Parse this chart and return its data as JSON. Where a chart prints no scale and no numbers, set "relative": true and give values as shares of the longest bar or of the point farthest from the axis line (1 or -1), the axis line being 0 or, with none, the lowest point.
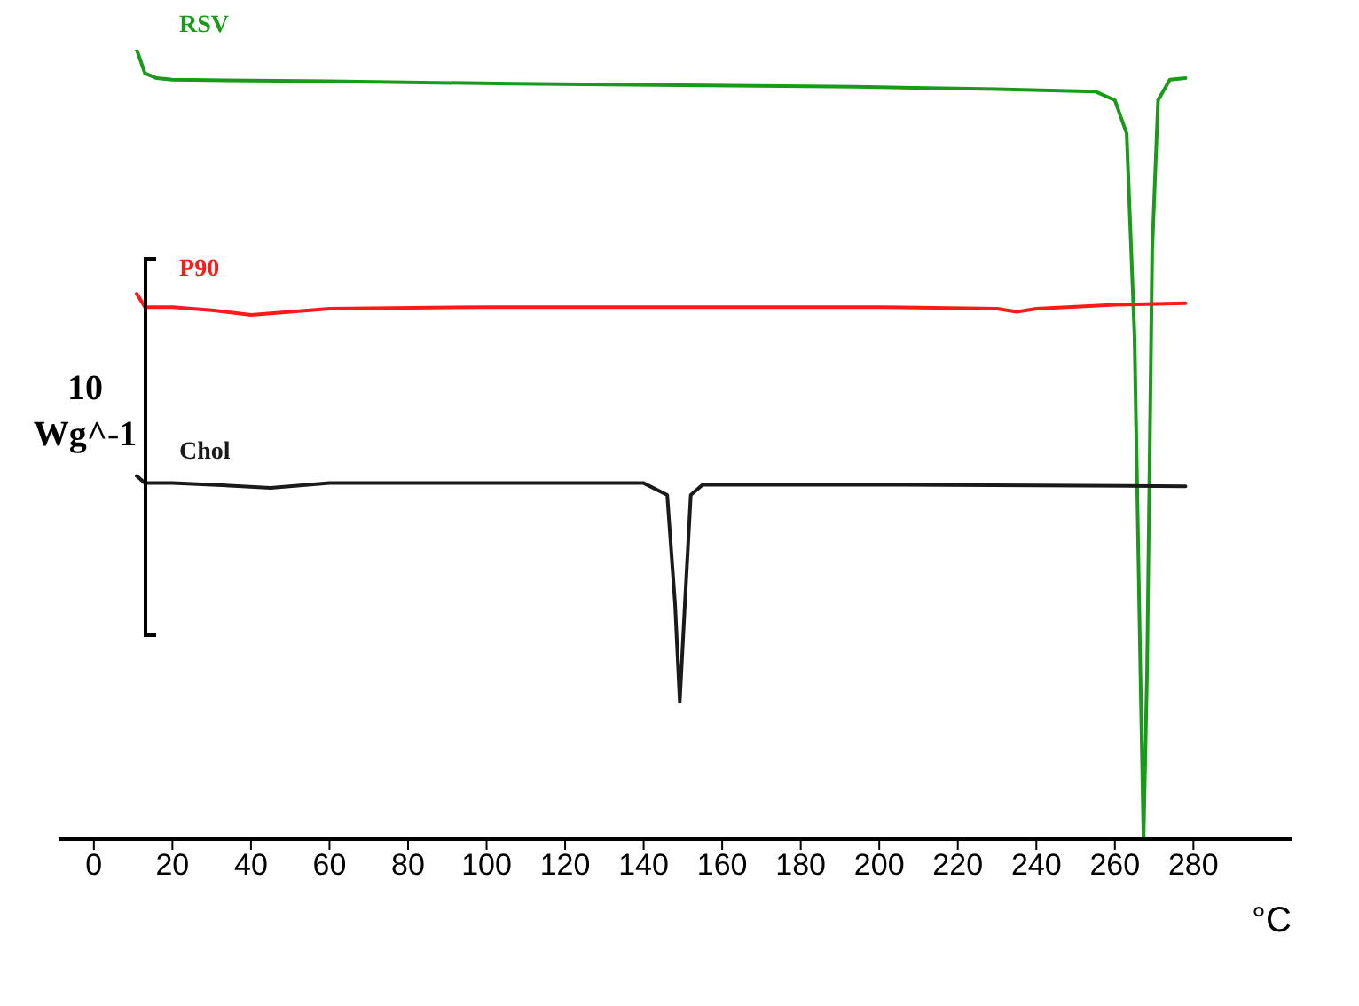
{
  "chart_data": {
    "type": "line",
    "relative": true,
    "xlabel": "°C",
    "xlim": [
      -9,
      305
    ],
    "xticks": [
      0,
      20,
      40,
      60,
      80,
      100,
      120,
      140,
      160,
      180,
      200,
      220,
      240,
      260,
      280
    ],
    "marker": "none",
    "line_style": "solid",
    "annotations": [
      "10 Wg^-1"
    ],
    "series": [
      {
        "name": "RSV",
        "color": "#1a9a1a",
        "x": [
          10.9,
          13,
          16,
          20,
          60,
          107,
          150,
          194,
          230,
          255,
          260,
          263,
          265,
          266.5,
          267.3,
          268.2,
          269.5,
          271,
          274,
          278
        ],
        "values": [
          1.0,
          0.97,
          0.964,
          0.962,
          0.96,
          0.957,
          0.955,
          0.953,
          0.95,
          0.947,
          0.936,
          0.894,
          0.638,
          0.213,
          0,
          0.213,
          0.745,
          0.936,
          0.962,
          0.964
        ]
      },
      {
        "name": "P90",
        "color": "#ff1a1a",
        "x": [
          10.9,
          13,
          20,
          30,
          40,
          50,
          60,
          100,
          150,
          200,
          230,
          235,
          240,
          260,
          278
        ],
        "values": [
          0.691,
          0.674,
          0.674,
          0.67,
          0.664,
          0.668,
          0.672,
          0.674,
          0.674,
          0.674,
          0.672,
          0.668,
          0.672,
          0.677,
          0.679
        ]
      },
      {
        "name": "Chol",
        "color": "#1a1a1a",
        "x": [
          10.9,
          13,
          20,
          30,
          45,
          60,
          100,
          140,
          146,
          148,
          149.2,
          150.5,
          152,
          155,
          200,
          278
        ],
        "values": [
          0.46,
          0.451,
          0.451,
          0.449,
          0.445,
          0.451,
          0.451,
          0.451,
          0.436,
          0.298,
          0.174,
          0.298,
          0.436,
          0.449,
          0.449,
          0.447
        ]
      }
    ]
  }
}
